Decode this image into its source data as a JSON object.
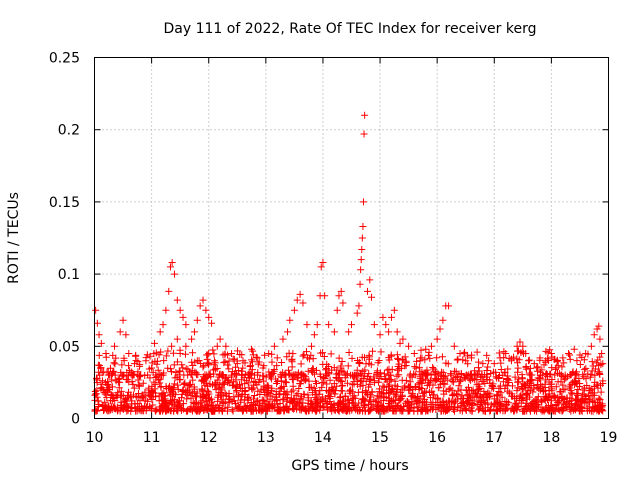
{
  "chart_data": {
    "type": "scatter",
    "title": "Day 111 of 2022, Rate Of TEC Index for receiver kerg",
    "xlabel": "GPS time / hours",
    "ylabel": "ROTI / TECUs",
    "xlim": [
      10,
      19
    ],
    "ylim": [
      0,
      0.25
    ],
    "x_ticks": [
      "10",
      "11",
      "12",
      "13",
      "14",
      "15",
      "16",
      "17",
      "18",
      "19"
    ],
    "y_ticks": [
      "0",
      "0.05",
      "0.1",
      "0.15",
      "0.2",
      "0.25"
    ],
    "grid": true,
    "marker": "+",
    "colors": {
      "points": "#ff0000",
      "axes": "#000000",
      "grid": "#a0a0a0"
    },
    "baseline_band": {
      "x_range": [
        10.0,
        18.9
      ],
      "y_min": 0.005,
      "y_max": 0.03
    },
    "series": [
      {
        "name": "ROTI",
        "points": [
          [
            10.02,
            0.075
          ],
          [
            10.05,
            0.066
          ],
          [
            10.08,
            0.058
          ],
          [
            10.12,
            0.052
          ],
          [
            10.2,
            0.045
          ],
          [
            10.35,
            0.05
          ],
          [
            10.45,
            0.06
          ],
          [
            10.5,
            0.068
          ],
          [
            10.55,
            0.058
          ],
          [
            10.6,
            0.045
          ],
          [
            10.7,
            0.038
          ],
          [
            10.9,
            0.04
          ],
          [
            11.0,
            0.035
          ],
          [
            11.05,
            0.052
          ],
          [
            11.15,
            0.06
          ],
          [
            11.2,
            0.065
          ],
          [
            11.25,
            0.075
          ],
          [
            11.3,
            0.088
          ],
          [
            11.33,
            0.105
          ],
          [
            11.36,
            0.108
          ],
          [
            11.4,
            0.1
          ],
          [
            11.45,
            0.082
          ],
          [
            11.5,
            0.075
          ],
          [
            11.55,
            0.07
          ],
          [
            11.6,
            0.065
          ],
          [
            11.35,
            0.05
          ],
          [
            11.45,
            0.055
          ],
          [
            11.6,
            0.05
          ],
          [
            11.7,
            0.055
          ],
          [
            11.75,
            0.06
          ],
          [
            11.8,
            0.068
          ],
          [
            11.85,
            0.078
          ],
          [
            11.9,
            0.082
          ],
          [
            11.95,
            0.075
          ],
          [
            12.0,
            0.07
          ],
          [
            12.05,
            0.066
          ],
          [
            11.5,
            0.045
          ],
          [
            11.8,
            0.04
          ],
          [
            12.0,
            0.045
          ],
          [
            12.1,
            0.04
          ],
          [
            12.15,
            0.05
          ],
          [
            12.2,
            0.055
          ],
          [
            12.3,
            0.05
          ],
          [
            12.4,
            0.045
          ],
          [
            12.5,
            0.038
          ],
          [
            12.6,
            0.04
          ],
          [
            12.75,
            0.048
          ],
          [
            12.85,
            0.042
          ],
          [
            12.95,
            0.035
          ],
          [
            13.05,
            0.045
          ],
          [
            13.15,
            0.05
          ],
          [
            13.2,
            0.042
          ],
          [
            13.3,
            0.055
          ],
          [
            13.38,
            0.06
          ],
          [
            13.42,
            0.068
          ],
          [
            13.5,
            0.075
          ],
          [
            13.55,
            0.082
          ],
          [
            13.6,
            0.086
          ],
          [
            13.65,
            0.08
          ],
          [
            13.72,
            0.065
          ],
          [
            13.8,
            0.05
          ],
          [
            13.85,
            0.058
          ],
          [
            13.9,
            0.065
          ],
          [
            13.95,
            0.085
          ],
          [
            13.97,
            0.105
          ],
          [
            14.0,
            0.108
          ],
          [
            14.03,
            0.085
          ],
          [
            14.1,
            0.065
          ],
          [
            14.2,
            0.06
          ],
          [
            14.25,
            0.075
          ],
          [
            14.28,
            0.085
          ],
          [
            14.32,
            0.088
          ],
          [
            14.35,
            0.08
          ],
          [
            14.45,
            0.06
          ],
          [
            14.5,
            0.065
          ],
          [
            14.6,
            0.073
          ],
          [
            14.63,
            0.078
          ],
          [
            14.65,
            0.093
          ],
          [
            14.66,
            0.103
          ],
          [
            14.67,
            0.11
          ],
          [
            14.68,
            0.117
          ],
          [
            14.69,
            0.125
          ],
          [
            14.7,
            0.133
          ],
          [
            14.71,
            0.15
          ],
          [
            14.72,
            0.197
          ],
          [
            14.73,
            0.21
          ],
          [
            14.78,
            0.088
          ],
          [
            14.82,
            0.096
          ],
          [
            14.85,
            0.084
          ],
          [
            14.9,
            0.065
          ],
          [
            15.0,
            0.058
          ],
          [
            15.05,
            0.07
          ],
          [
            15.1,
            0.065
          ],
          [
            15.15,
            0.06
          ],
          [
            15.2,
            0.07
          ],
          [
            15.25,
            0.075
          ],
          [
            15.3,
            0.06
          ],
          [
            15.35,
            0.052
          ],
          [
            15.4,
            0.055
          ],
          [
            15.5,
            0.05
          ],
          [
            15.6,
            0.045
          ],
          [
            15.7,
            0.04
          ],
          [
            15.8,
            0.048
          ],
          [
            15.9,
            0.05
          ],
          [
            16.0,
            0.055
          ],
          [
            16.05,
            0.062
          ],
          [
            16.1,
            0.068
          ],
          [
            16.15,
            0.078
          ],
          [
            16.2,
            0.078
          ],
          [
            16.3,
            0.05
          ],
          [
            16.4,
            0.045
          ],
          [
            16.5,
            0.04
          ],
          [
            16.6,
            0.042
          ],
          [
            16.7,
            0.046
          ],
          [
            16.8,
            0.038
          ],
          [
            16.9,
            0.04
          ],
          [
            17.0,
            0.038
          ],
          [
            17.1,
            0.042
          ],
          [
            17.2,
            0.045
          ],
          [
            17.3,
            0.04
          ],
          [
            17.4,
            0.05
          ],
          [
            17.45,
            0.053
          ],
          [
            17.5,
            0.05
          ],
          [
            17.55,
            0.045
          ],
          [
            17.6,
            0.04
          ],
          [
            17.7,
            0.038
          ],
          [
            17.8,
            0.042
          ],
          [
            17.9,
            0.04
          ],
          [
            18.0,
            0.045
          ],
          [
            18.1,
            0.04
          ],
          [
            18.2,
            0.042
          ],
          [
            18.3,
            0.045
          ],
          [
            18.4,
            0.048
          ],
          [
            18.5,
            0.044
          ],
          [
            18.6,
            0.045
          ],
          [
            18.7,
            0.05
          ],
          [
            18.75,
            0.058
          ],
          [
            18.8,
            0.062
          ],
          [
            18.83,
            0.064
          ],
          [
            18.85,
            0.055
          ],
          [
            18.88,
            0.045
          ],
          [
            18.9,
            0.038
          ]
        ]
      }
    ]
  }
}
